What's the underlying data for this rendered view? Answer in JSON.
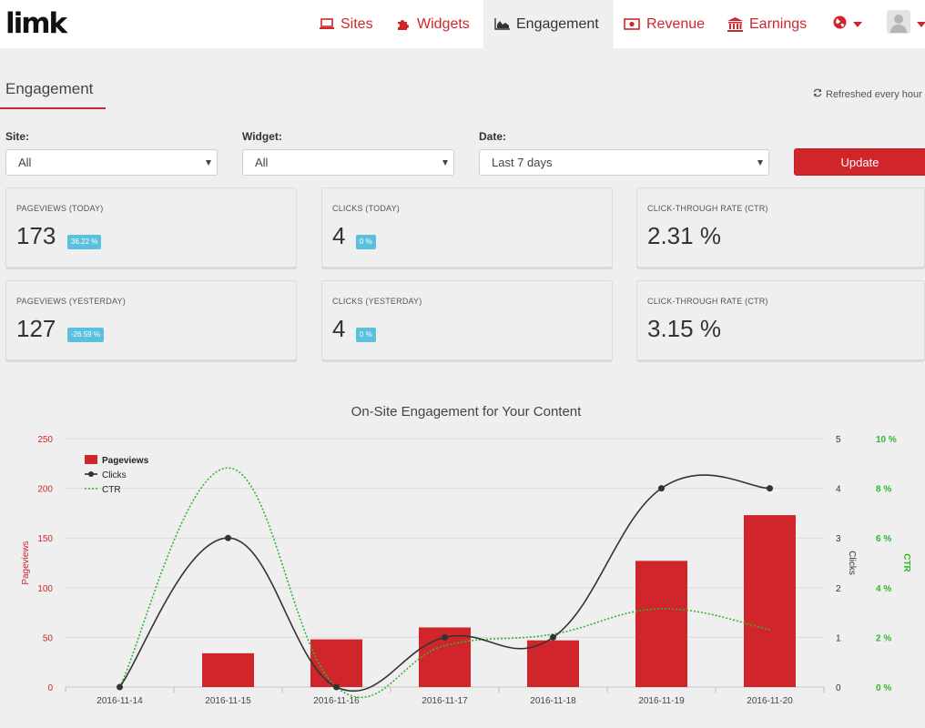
{
  "logo": "limk",
  "nav": {
    "sites": "Sites",
    "widgets": "Widgets",
    "engagement": "Engagement",
    "revenue": "Revenue",
    "earnings": "Earnings"
  },
  "page": {
    "title": "Engagement",
    "refresh": "Refreshed every hour"
  },
  "filters": {
    "site_label": "Site:",
    "site_value": "All",
    "widget_label": "Widget:",
    "widget_value": "All",
    "date_label": "Date:",
    "date_value": "Last 7 days",
    "update": "Update"
  },
  "cards": {
    "pageviews_today": {
      "label": "PAGEVIEWS (TODAY)",
      "value": "173",
      "badge": "36.22 %"
    },
    "clicks_today": {
      "label": "CLICKS (TODAY)",
      "value": "4",
      "badge": "0 %"
    },
    "ctr_today": {
      "label": "CLICK-THROUGH RATE (CTR)",
      "value": "2.31 %"
    },
    "pageviews_yesterday": {
      "label": "PAGEVIEWS (YESTERDAY)",
      "value": "127",
      "badge": "-26.59 %"
    },
    "clicks_yesterday": {
      "label": "CLICKS (YESTERDAY)",
      "value": "4",
      "badge": "0 %"
    },
    "ctr_yesterday": {
      "label": "CLICK-THROUGH RATE (CTR)",
      "value": "3.15 %"
    }
  },
  "colors": {
    "accent": "#d0262b",
    "badge": "#5bc0de",
    "clicks_line": "#333333",
    "ctr_line": "#2db82d"
  },
  "chart_data": {
    "type": "bar",
    "title": "On-Site Engagement for Your Content",
    "categories": [
      "2016-11-14",
      "2016-11-15",
      "2016-11-16",
      "2016-11-17",
      "2016-11-18",
      "2016-11-19",
      "2016-11-20"
    ],
    "series": [
      {
        "name": "Pageviews",
        "type": "bar",
        "axis": "left",
        "values": [
          0,
          34,
          48,
          60,
          47,
          127,
          173
        ]
      },
      {
        "name": "Clicks",
        "type": "line",
        "axis": "right",
        "values": [
          0,
          3,
          0,
          1,
          1,
          4,
          4
        ]
      },
      {
        "name": "CTR",
        "type": "line",
        "axis": "right2",
        "values": [
          0,
          8.82,
          0,
          1.67,
          2.13,
          3.15,
          2.31
        ]
      }
    ],
    "ylabel": "Pageviews",
    "ylabel_right": "Clicks",
    "ylabel_right2": "CTR",
    "ylim": [
      0,
      250
    ],
    "ylim_right": [
      0,
      5
    ],
    "ylim_right2": [
      0,
      10
    ],
    "yticks": [
      "0",
      "50",
      "100",
      "150",
      "200",
      "250"
    ],
    "yticks_right": [
      "0",
      "1",
      "2",
      "3",
      "4",
      "5"
    ],
    "yticks_right2": [
      "0 %",
      "2 %",
      "4 %",
      "6 %",
      "8 %",
      "10 %"
    ],
    "grid": true,
    "legend_position": "top-left"
  }
}
